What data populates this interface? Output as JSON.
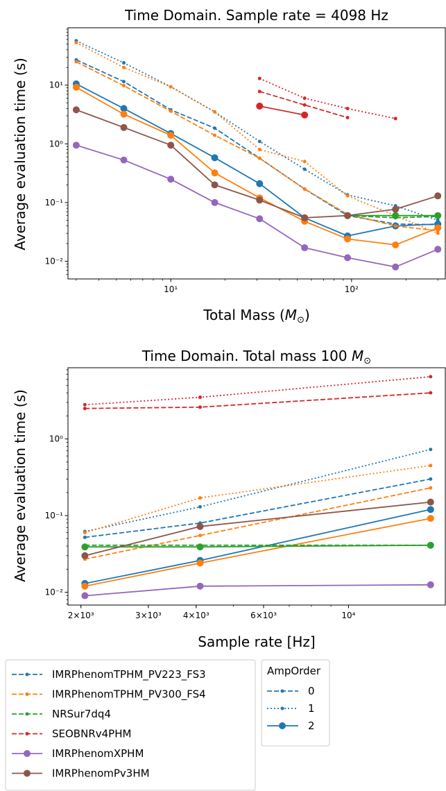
{
  "chart_data": [
    {
      "type": "line",
      "title": "Time Domain. Sample rate = 4098 Hz",
      "xlabel": "Total Mass (M⊙)",
      "ylabel": "Average evaluation time (s)",
      "xscale": "log",
      "yscale": "log",
      "xlim": [
        2.7,
        330
      ],
      "ylim": [
        0.005,
        95
      ],
      "xticks": [
        {
          "value": 10,
          "label": "10¹"
        },
        {
          "value": 100,
          "label": "10²"
        }
      ],
      "yticks": [
        {
          "value": 0.01,
          "label": "10⁻²"
        },
        {
          "value": 0.1,
          "label": "10⁻¹"
        },
        {
          "value": 1,
          "label": "10⁰"
        },
        {
          "value": 10,
          "label": "10¹"
        }
      ],
      "series": [
        {
          "name": "IMRPhenomTPHM_PV223_FS3",
          "AmpOrder": "0",
          "x": [
            3,
            5.5,
            10,
            17.5,
            31,
            55,
            95,
            175,
            300
          ],
          "y": [
            27,
            11.5,
            3.8,
            1.85,
            0.57,
            0.17,
            0.06,
            0.043,
            0.042
          ]
        },
        {
          "name": "IMRPhenomTPHM_PV223_FS3",
          "AmpOrder": "1",
          "x": [
            3,
            5.5,
            10,
            17.5,
            31,
            55,
            95,
            175,
            300
          ],
          "y": [
            57,
            24,
            9.4,
            3.5,
            1.1,
            0.37,
            0.135,
            0.088,
            0.05
          ]
        },
        {
          "name": "IMRPhenomTPHM_PV223_FS3",
          "AmpOrder": "2",
          "x": [
            3,
            5.5,
            10,
            17.5,
            31,
            55,
            95,
            175,
            300
          ],
          "y": [
            10.5,
            4,
            1.5,
            0.58,
            0.21,
            0.055,
            0.027,
            0.04,
            0.043
          ]
        },
        {
          "name": "IMRPhenomTPHM_PV300_FS4",
          "AmpOrder": "0",
          "x": [
            3,
            5.5,
            10,
            17.5,
            31,
            55,
            95,
            175,
            300
          ],
          "y": [
            25,
            9.8,
            3.6,
            1.4,
            0.57,
            0.17,
            0.063,
            0.04,
            0.033
          ]
        },
        {
          "name": "IMRPhenomTPHM_PV300_FS4",
          "AmpOrder": "1",
          "x": [
            3,
            5.5,
            10,
            17.5,
            31,
            55,
            95,
            175,
            300
          ],
          "y": [
            53,
            20,
            9.4,
            3.5,
            0.8,
            0.5,
            0.13,
            0.06,
            0.03
          ]
        },
        {
          "name": "IMRPhenomTPHM_PV300_FS4",
          "AmpOrder": "2",
          "x": [
            3,
            5.5,
            10,
            17.5,
            31,
            55,
            95,
            175,
            300
          ],
          "y": [
            9.2,
            3.2,
            1.4,
            0.32,
            0.12,
            0.048,
            0.024,
            0.019,
            0.037
          ]
        },
        {
          "name": "NRSur7dq4",
          "AmpOrder": "0",
          "x": [
            95,
            175,
            300
          ],
          "y": [
            0.06,
            0.055,
            0.058
          ]
        },
        {
          "name": "NRSur7dq4",
          "AmpOrder": "2",
          "x": [
            95,
            175,
            300
          ],
          "y": [
            0.06,
            0.06,
            0.06
          ]
        },
        {
          "name": "SEOBNRv4PHM",
          "AmpOrder": "0",
          "x": [
            31,
            55,
            95
          ],
          "y": [
            7.8,
            4.6,
            2.8
          ]
        },
        {
          "name": "SEOBNRv4PHM",
          "AmpOrder": "1",
          "x": [
            31,
            55,
            95,
            175
          ],
          "y": [
            13,
            6,
            4,
            2.7
          ]
        },
        {
          "name": "SEOBNRv4PHM",
          "AmpOrder": "2",
          "x": [
            31,
            55
          ],
          "y": [
            4.4,
            3.1
          ]
        },
        {
          "name": "IMRPhenomXPHM",
          "AmpOrder": "2",
          "x": [
            3,
            5.5,
            10,
            17.5,
            31,
            55,
            95,
            175,
            300
          ],
          "y": [
            0.95,
            0.53,
            0.25,
            0.1,
            0.053,
            0.017,
            0.0115,
            0.008,
            0.016
          ]
        },
        {
          "name": "IMRPhenomPv3HM",
          "AmpOrder": "2",
          "x": [
            3,
            5.5,
            10,
            17.5,
            31,
            55,
            95,
            175,
            300
          ],
          "y": [
            3.8,
            1.9,
            0.95,
            0.2,
            0.11,
            0.055,
            0.06,
            0.077,
            0.13
          ]
        }
      ]
    },
    {
      "type": "line",
      "title": "Time Domain. Total mass 100 M⊙",
      "xlabel": "Sample rate [Hz]",
      "ylabel": "Average evaluation time (s)",
      "xscale": "log",
      "yscale": "log",
      "xlim": [
        1850,
        17900
      ],
      "ylim": [
        0.0068,
        8.5
      ],
      "xticks": [
        {
          "value": 2000,
          "label": "2×10³"
        },
        {
          "value": 3000,
          "label": "3×10³"
        },
        {
          "value": 4000,
          "label": "4×10³"
        },
        {
          "value": 6000,
          "label": "6×10³"
        },
        {
          "value": 10000,
          "label": "10⁴"
        }
      ],
      "yticks": [
        {
          "value": 0.01,
          "label": "10⁻²"
        },
        {
          "value": 0.1,
          "label": "10⁻¹"
        },
        {
          "value": 1,
          "label": "10⁰"
        }
      ],
      "series": [
        {
          "name": "IMRPhenomTPHM_PV223_FS3",
          "AmpOrder": "0",
          "x": [
            2048,
            4096,
            16384
          ],
          "y": [
            0.052,
            0.08,
            0.3
          ]
        },
        {
          "name": "IMRPhenomTPHM_PV223_FS3",
          "AmpOrder": "1",
          "x": [
            2048,
            4096,
            16384
          ],
          "y": [
            0.062,
            0.13,
            0.73
          ]
        },
        {
          "name": "IMRPhenomTPHM_PV223_FS3",
          "AmpOrder": "2",
          "x": [
            2048,
            4096,
            16384
          ],
          "y": [
            0.013,
            0.026,
            0.12
          ]
        },
        {
          "name": "IMRPhenomTPHM_PV300_FS4",
          "AmpOrder": "0",
          "x": [
            2048,
            4096,
            16384
          ],
          "y": [
            0.027,
            0.055,
            0.23
          ]
        },
        {
          "name": "IMRPhenomTPHM_PV300_FS4",
          "AmpOrder": "1",
          "x": [
            2048,
            4096,
            16384
          ],
          "y": [
            0.06,
            0.17,
            0.45
          ]
        },
        {
          "name": "IMRPhenomTPHM_PV300_FS4",
          "AmpOrder": "2",
          "x": [
            2048,
            4096,
            16384
          ],
          "y": [
            0.012,
            0.024,
            0.092
          ]
        },
        {
          "name": "NRSur7dq4",
          "AmpOrder": "0",
          "x": [
            2048,
            4096,
            16384
          ],
          "y": [
            0.041,
            0.041,
            0.041
          ]
        },
        {
          "name": "NRSur7dq4",
          "AmpOrder": "2",
          "x": [
            2048,
            4096,
            16384
          ],
          "y": [
            0.039,
            0.039,
            0.041
          ]
        },
        {
          "name": "SEOBNRv4PHM",
          "AmpOrder": "0",
          "x": [
            2048,
            4096,
            16384
          ],
          "y": [
            2.5,
            2.6,
            4.0
          ]
        },
        {
          "name": "SEOBNRv4PHM",
          "AmpOrder": "1",
          "x": [
            2048,
            4096,
            16384
          ],
          "y": [
            2.8,
            3.5,
            6.5
          ]
        },
        {
          "name": "IMRPhenomXPHM",
          "AmpOrder": "2",
          "x": [
            2048,
            4096,
            16384
          ],
          "y": [
            0.009,
            0.012,
            0.0125
          ]
        },
        {
          "name": "IMRPhenomPv3HM",
          "AmpOrder": "2",
          "x": [
            2048,
            4096,
            16384
          ],
          "y": [
            0.03,
            0.072,
            0.15
          ]
        }
      ]
    }
  ],
  "legend": {
    "models": [
      {
        "label": "IMRPhenomTPHM_PV223_FS3",
        "color": "#1f77b4",
        "style": "dashed-dot"
      },
      {
        "label": "IMRPhenomTPHM_PV300_FS4",
        "color": "#ff7f0e",
        "style": "dashed-dot"
      },
      {
        "label": "NRSur7dq4",
        "color": "#2ca02c",
        "style": "dashed-dot"
      },
      {
        "label": "SEOBNRv4PHM",
        "color": "#d62728",
        "style": "dashed-dot"
      },
      {
        "label": "IMRPhenomXPHM",
        "color": "#9467bd",
        "style": "solid-big"
      },
      {
        "label": "IMRPhenomPv3HM",
        "color": "#8c564b",
        "style": "solid-big"
      }
    ],
    "amp_title": "AmpOrder",
    "amp": [
      {
        "label": "0",
        "style": "dashed"
      },
      {
        "label": "1",
        "style": "dotted"
      },
      {
        "label": "2",
        "style": "solid"
      }
    ]
  },
  "colors": {
    "IMRPhenomTPHM_PV223_FS3": "#1f77b4",
    "IMRPhenomTPHM_PV300_FS4": "#ff7f0e",
    "NRSur7dq4": "#2ca02c",
    "SEOBNRv4PHM": "#d62728",
    "IMRPhenomXPHM": "#9467bd",
    "IMRPhenomPv3HM": "#8c564b"
  }
}
